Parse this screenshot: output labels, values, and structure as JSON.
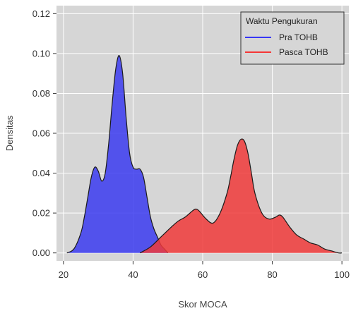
{
  "chart_data": {
    "type": "area",
    "title": "",
    "xlabel": "Skor MOCA",
    "ylabel": "Densitas",
    "xlim": [
      18,
      102
    ],
    "ylim": [
      -0.004,
      0.124
    ],
    "x_ticks": [
      20,
      40,
      60,
      80,
      100
    ],
    "y_ticks": [
      0.0,
      0.02,
      0.04,
      0.06,
      0.08,
      0.1,
      0.12
    ],
    "x_tick_labels": [
      "20",
      "40",
      "60",
      "80",
      "100"
    ],
    "y_tick_labels": [
      "0.00",
      "0.02",
      "0.04",
      "0.06",
      "0.08",
      "0.10",
      "0.12"
    ],
    "grid": true,
    "legend": {
      "title": "Waktu Pengukuran",
      "placement": "top-right"
    },
    "series": [
      {
        "name": "Pra TOHB",
        "color": "#0000ff",
        "fill": "#3b3bf0",
        "x": [
          21,
          23,
          25,
          26,
          27,
          28,
          29,
          30,
          31,
          32,
          33,
          34,
          35,
          36,
          37,
          38,
          39,
          40,
          41,
          42,
          43,
          44,
          45,
          46,
          47,
          48,
          49,
          50
        ],
        "y": [
          0.0,
          0.002,
          0.01,
          0.018,
          0.028,
          0.038,
          0.043,
          0.041,
          0.036,
          0.04,
          0.055,
          0.075,
          0.092,
          0.099,
          0.09,
          0.068,
          0.05,
          0.043,
          0.042,
          0.042,
          0.038,
          0.028,
          0.018,
          0.012,
          0.008,
          0.004,
          0.002,
          0.0
        ]
      },
      {
        "name": "Pasca TOHB",
        "color": "#ff0000",
        "fill": "#f03a3a",
        "x": [
          42,
          45,
          48,
          51,
          53,
          55,
          57,
          58,
          59,
          61,
          63,
          65,
          67,
          68,
          69,
          70,
          71,
          72,
          73,
          74,
          75,
          77,
          79,
          81,
          82,
          83,
          85,
          87,
          89,
          91,
          93,
          95,
          97,
          99,
          100
        ],
        "y": [
          0.0,
          0.003,
          0.008,
          0.013,
          0.016,
          0.018,
          0.021,
          0.022,
          0.021,
          0.017,
          0.015,
          0.02,
          0.03,
          0.038,
          0.047,
          0.054,
          0.057,
          0.056,
          0.05,
          0.04,
          0.03,
          0.02,
          0.017,
          0.018,
          0.019,
          0.018,
          0.013,
          0.009,
          0.007,
          0.005,
          0.004,
          0.002,
          0.001,
          0.0,
          0.0
        ]
      }
    ]
  }
}
